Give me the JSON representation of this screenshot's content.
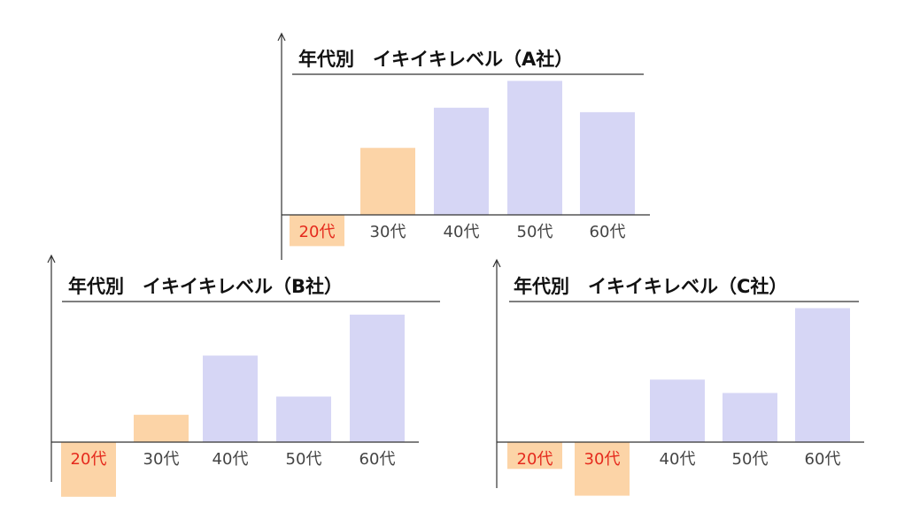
{
  "colors": {
    "positive_bar": "#d6d6f5",
    "highlight_bar": "#fcd4a7",
    "highlight_text": "#e52a1d",
    "axis": "#333333",
    "label": "#444444"
  },
  "chart_data": [
    {
      "type": "bar",
      "title": "年代別　イキイキレベル（A社）",
      "xlabel": "",
      "ylabel": "",
      "categories": [
        "20代",
        "30代",
        "40代",
        "50代",
        "60代"
      ],
      "values": [
        -0.35,
        0.75,
        1.2,
        1.5,
        1.15
      ],
      "highlighted": [
        "20代",
        "30代"
      ],
      "highlighted_labels": [
        "20代"
      ],
      "grid": false
    },
    {
      "type": "bar",
      "title": "年代別　イキイキレベル（B社）",
      "xlabel": "",
      "ylabel": "",
      "categories": [
        "20代",
        "30代",
        "40代",
        "50代",
        "60代"
      ],
      "values": [
        -0.6,
        0.3,
        0.95,
        0.5,
        1.4
      ],
      "highlighted": [
        "20代",
        "30代"
      ],
      "highlighted_labels": [
        "20代"
      ],
      "grid": false
    },
    {
      "type": "bar",
      "title": "年代別　イキイキレベル（C社）",
      "xlabel": "",
      "ylabel": "",
      "categories": [
        "20代",
        "30代",
        "40代",
        "50代",
        "60代"
      ],
      "values": [
        -0.3,
        -0.6,
        0.7,
        0.55,
        1.5
      ],
      "highlighted": [
        "20代",
        "30代"
      ],
      "highlighted_labels": [
        "20代",
        "30代"
      ],
      "grid": false
    }
  ]
}
